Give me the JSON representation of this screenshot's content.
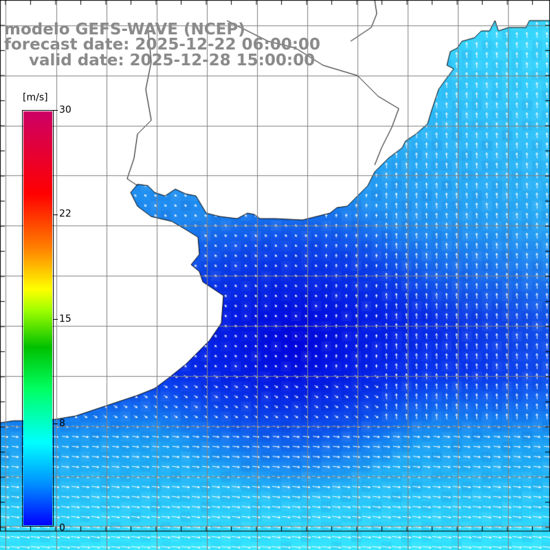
{
  "title": {
    "line1": "modelo GEFS-WAVE (NCEP)",
    "line2": "forecast date: 2025-12-22 06:00:00",
    "line3": "valid date: 2025-12-28 15:00:00"
  },
  "colorbar": {
    "unit": "[m/s]",
    "ticks": [
      "0",
      "8",
      "15",
      "22",
      "30"
    ],
    "tick_values": [
      0,
      8,
      15,
      22,
      30
    ],
    "colors": [
      "#0000ff",
      "#0090ff",
      "#00ffff",
      "#00ff60",
      "#00c000",
      "#a0ff00",
      "#ffff00",
      "#ff8000",
      "#ff0000",
      "#cc0066"
    ]
  },
  "map": {
    "variable": "wind speed (m/s) with direction arrows",
    "land_color": "#ffffff",
    "grid_color": "#808080",
    "coastline_color": "#000000",
    "arrow_color": "#ffffff"
  }
}
